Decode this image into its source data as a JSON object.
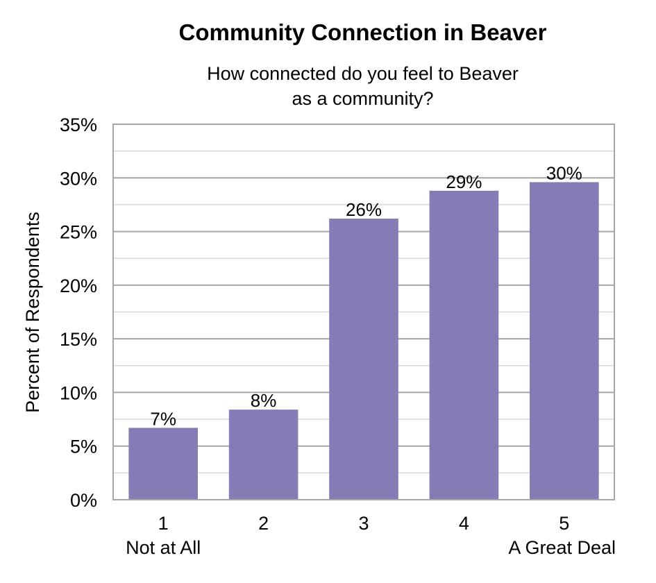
{
  "chart_data": {
    "type": "bar",
    "title": "Community Connection in Beaver",
    "subtitle_lines": [
      "How connected do you feel to Beaver",
      "as a community?"
    ],
    "ylabel": "Percent of Respondents",
    "xlabel": "",
    "categories": [
      "1",
      "2",
      "3",
      "4",
      "5"
    ],
    "category_sublabels": [
      "Not at All",
      "",
      "",
      "",
      "A Great Deal"
    ],
    "values": [
      6.7,
      8.4,
      26.2,
      28.8,
      29.6
    ],
    "data_labels": [
      "7%",
      "8%",
      "26%",
      "29%",
      "30%"
    ],
    "ylim": [
      0,
      35
    ],
    "yticks": [
      0,
      5,
      10,
      15,
      20,
      25,
      30,
      35
    ],
    "ytick_labels": [
      "0%",
      "5%",
      "10%",
      "15%",
      "20%",
      "25%",
      "30%",
      "35%"
    ],
    "grid": true,
    "legend": "none",
    "bar_color": "#877BB5",
    "major_grid_color": "#A6A6A6",
    "minor_grid_color": "#D9D9D9"
  }
}
